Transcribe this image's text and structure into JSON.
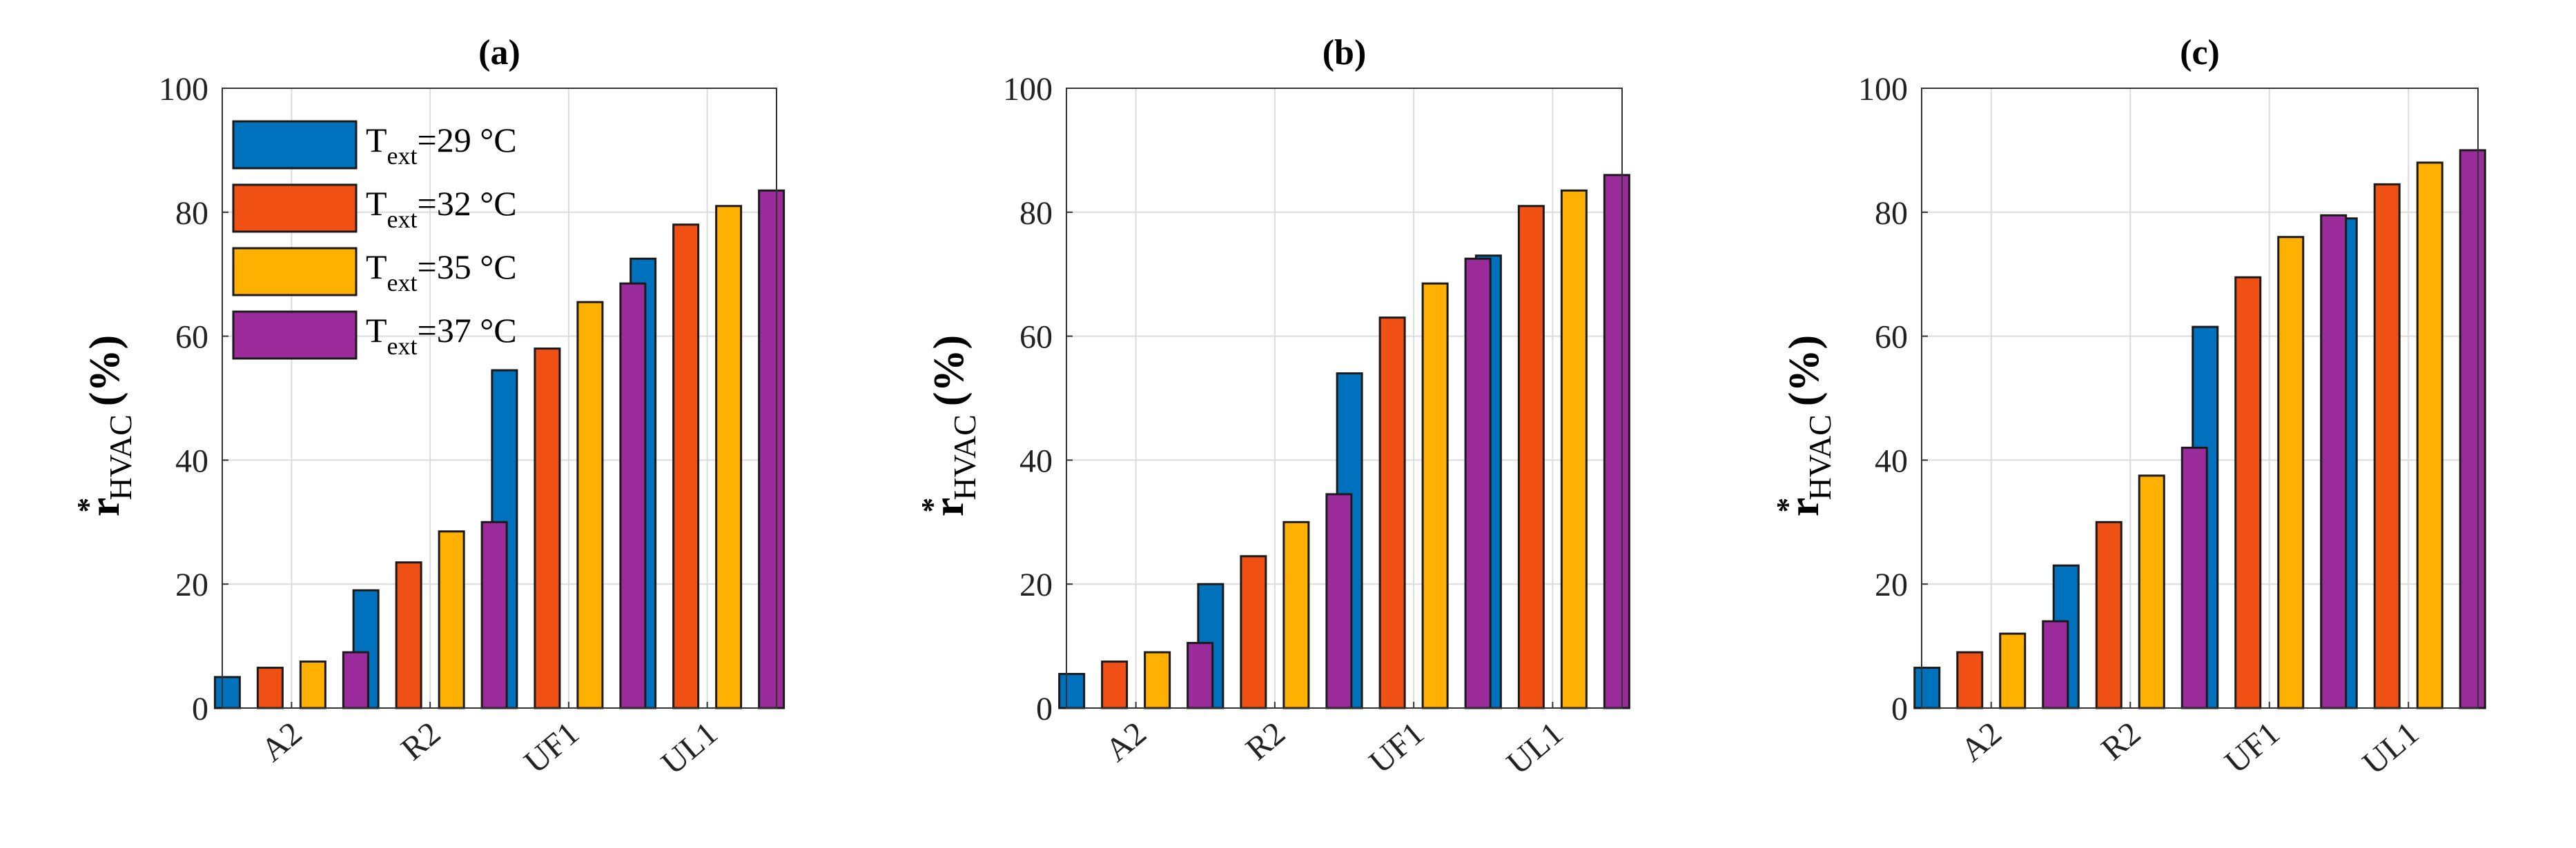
{
  "chart_data": [
    {
      "type": "bar",
      "title": "(a)",
      "ylabel": "r*HVAC (%)",
      "ylabel_parts": {
        "star": "*",
        "base": "r",
        "sub": "HVAC",
        "unit": "(%)"
      },
      "xlabel": "",
      "categories": [
        "A2",
        "R2",
        "UF1",
        "UL1"
      ],
      "ylim": [
        0,
        100
      ],
      "yticks": [
        0,
        20,
        40,
        60,
        80,
        100
      ],
      "grid": true,
      "legend": "top-left",
      "series": [
        {
          "name": "Text=29 °C",
          "values": [
            5,
            19,
            54.5,
            72.5
          ]
        },
        {
          "name": "Text=32 °C",
          "values": [
            6.5,
            23.5,
            58,
            78
          ]
        },
        {
          "name": "Text=35 °C",
          "values": [
            7.5,
            28.5,
            65.5,
            81
          ]
        },
        {
          "name": "Text=37 °C",
          "values": [
            9,
            30,
            68.5,
            83.5
          ]
        }
      ]
    },
    {
      "type": "bar",
      "title": "(b)",
      "ylabel": "r*HVAC (%)",
      "ylabel_parts": {
        "star": "*",
        "base": "r",
        "sub": "HVAC",
        "unit": "(%)"
      },
      "xlabel": "",
      "categories": [
        "A2",
        "R2",
        "UF1",
        "UL1"
      ],
      "ylim": [
        0,
        100
      ],
      "yticks": [
        0,
        20,
        40,
        60,
        80,
        100
      ],
      "grid": true,
      "series": [
        {
          "name": "Text=29 °C",
          "values": [
            5.5,
            20,
            54,
            73
          ]
        },
        {
          "name": "Text=32 °C",
          "values": [
            7.5,
            24.5,
            63,
            81
          ]
        },
        {
          "name": "Text=35 °C",
          "values": [
            9,
            30,
            68.5,
            83.5
          ]
        },
        {
          "name": "Text=37 °C",
          "values": [
            10.5,
            34.5,
            72.5,
            86
          ]
        }
      ]
    },
    {
      "type": "bar",
      "title": "(c)",
      "ylabel": "r*HVAC (%)",
      "ylabel_parts": {
        "star": "*",
        "base": "r",
        "sub": "HVAC",
        "unit": "(%)"
      },
      "xlabel": "",
      "categories": [
        "A2",
        "R2",
        "UF1",
        "UL1"
      ],
      "ylim": [
        0,
        100
      ],
      "yticks": [
        0,
        20,
        40,
        60,
        80,
        100
      ],
      "grid": true,
      "series": [
        {
          "name": "Text=29 °C",
          "values": [
            6.5,
            23,
            61.5,
            79
          ]
        },
        {
          "name": "Text=32 °C",
          "values": [
            9,
            30,
            69.5,
            84.5
          ]
        },
        {
          "name": "Text=35 °C",
          "values": [
            12,
            37.5,
            76,
            88
          ]
        },
        {
          "name": "Text=37 °C",
          "values": [
            14,
            42,
            79.5,
            90
          ]
        }
      ]
    }
  ],
  "legend": {
    "entries": [
      {
        "main": "T",
        "sub": "ext",
        "rest": "=29 °C"
      },
      {
        "main": "T",
        "sub": "ext",
        "rest": "=32 °C"
      },
      {
        "main": "T",
        "sub": "ext",
        "rest": "=35 °C"
      },
      {
        "main": "T",
        "sub": "ext",
        "rest": "=37 °C"
      }
    ]
  },
  "colors": {
    "series": [
      "#0072BD",
      "#F05014",
      "#FFB000",
      "#9B2A9B"
    ]
  }
}
